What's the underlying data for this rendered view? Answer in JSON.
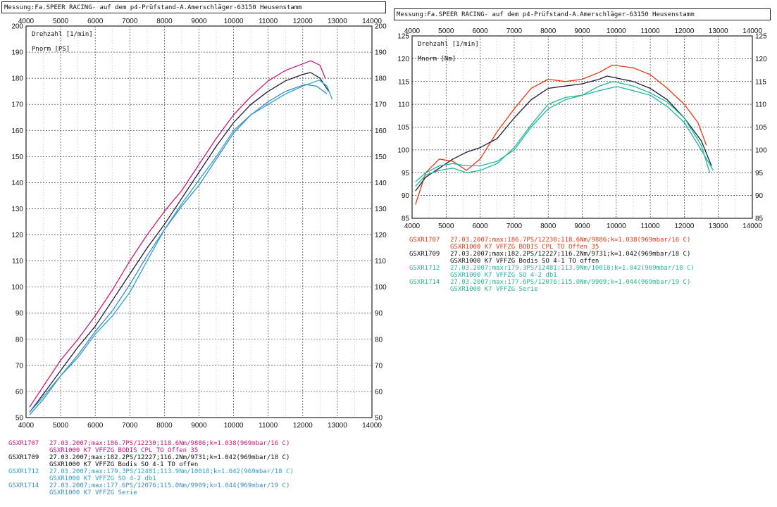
{
  "header": {
    "title": "Messung:Fa.SPEER RACING- auf dem p4-Prüfstand-A.Amerschläger-63150 Heusenstamm"
  },
  "colors": {
    "GSXR1707_left": "#c8197a",
    "GSXR1707_right": "#e33a10",
    "GSXR1709": "#1c1c3a",
    "GSXR1712": "#2ba0cf",
    "GSXR1712_right": "#1fb4a6",
    "GSXR1714": "#3a8fc2",
    "GSXR1714_right": "#26b890",
    "grid": "#3a3a3a"
  },
  "legend": [
    {
      "run": "GSXR1707",
      "line1": "27.03.2007;max:186.7PS/12230;118.6Nm/9886;k=1.038(969mbar/16 C)",
      "line2": "GSXR1000 K7 VFFZG BODIS CPL TO Offen 35"
    },
    {
      "run": "GSXR1709",
      "line1": "27.03.2007;max:182.2PS/12227;116.2Nm/9731;k=1.042(969mbar/18 C)",
      "line2": "GSXR1000 K7 VFFZG Bodis SO 4-1 TO offen"
    },
    {
      "run": "GSXR1712",
      "line1": "27.03.2007;max:179.3PS/12481;113.9Nm/10018;k=1.042(969mbar/18 C)",
      "line2": "GSXR1000 K7 VFFZG SO 4-2 db1"
    },
    {
      "run": "GSXR1714",
      "line1": "27.03.2007;max:177.6PS/12076;115.0Nm/9909;k=1.044(969mbar/19 C)",
      "line2": "GSXR1000 K7 VFFZG Serie"
    }
  ],
  "chart_data": [
    {
      "type": "line",
      "xlabel": "Drehzahl [1/min]",
      "ylabel": "Pnorm [PS]",
      "xlim": [
        4000,
        14000
      ],
      "ylim": [
        50,
        200
      ],
      "xticks": [
        4000,
        5000,
        6000,
        7000,
        8000,
        9000,
        10000,
        11000,
        12000,
        13000,
        14000
      ],
      "yticks": [
        50,
        60,
        70,
        80,
        90,
        100,
        110,
        120,
        130,
        140,
        150,
        160,
        170,
        180,
        190,
        200
      ],
      "grid": true,
      "series": [
        {
          "name": "GSXR1707",
          "x": [
            4100,
            4500,
            5000,
            5500,
            6000,
            6500,
            7000,
            7500,
            8000,
            8500,
            9000,
            9500,
            10000,
            10500,
            11000,
            11500,
            12000,
            12230,
            12500,
            12650
          ],
          "y": [
            54,
            62,
            72,
            80,
            89,
            99,
            110,
            120,
            129,
            137,
            147,
            157,
            166,
            173,
            179,
            183,
            185.5,
            186.7,
            185,
            180
          ]
        },
        {
          "name": "GSXR1709",
          "x": [
            4100,
            4500,
            5000,
            5500,
            6000,
            6500,
            7000,
            7500,
            8000,
            8500,
            9000,
            9500,
            10000,
            10500,
            11000,
            11500,
            12000,
            12227,
            12500,
            12750
          ],
          "y": [
            52,
            59,
            68,
            77,
            85,
            95,
            105,
            115,
            124,
            134,
            144,
            154,
            163,
            170,
            175,
            179,
            181.5,
            182.2,
            180,
            175
          ]
        },
        {
          "name": "GSXR1712",
          "x": [
            4100,
            4500,
            5000,
            5500,
            6000,
            6500,
            7000,
            7500,
            8000,
            8500,
            9000,
            9500,
            10000,
            10500,
            11000,
            11500,
            12000,
            12481,
            12700,
            12850
          ],
          "y": [
            52,
            58,
            66,
            73,
            82,
            89,
            98,
            110,
            122,
            132,
            141,
            150,
            160,
            166,
            170,
            174,
            177,
            179.3,
            177,
            172
          ]
        },
        {
          "name": "GSXR1714",
          "x": [
            4100,
            4500,
            5000,
            5500,
            6000,
            6500,
            7000,
            7500,
            8000,
            8500,
            9000,
            9500,
            10000,
            10500,
            11000,
            11500,
            12000,
            12076,
            12400,
            12700
          ],
          "y": [
            51,
            57,
            66,
            74,
            83,
            91,
            101,
            112,
            122,
            131,
            139,
            149,
            159,
            166,
            171,
            175,
            177.3,
            177.6,
            177,
            174
          ]
        }
      ]
    },
    {
      "type": "line",
      "xlabel": "Drehzahl [1/min]",
      "ylabel": "Mnorm [Nm]",
      "xlim": [
        4000,
        14000
      ],
      "ylim": [
        85,
        125
      ],
      "xticks": [
        4000,
        5000,
        6000,
        7000,
        8000,
        9000,
        10000,
        11000,
        12000,
        13000,
        14000
      ],
      "yticks": [
        85,
        90,
        95,
        100,
        105,
        110,
        115,
        120,
        125
      ],
      "grid": true,
      "series": [
        {
          "name": "GSXR1707",
          "x": [
            4100,
            4400,
            4800,
            5200,
            5600,
            6000,
            6500,
            7000,
            7500,
            8000,
            8500,
            9000,
            9500,
            9886,
            10500,
            11000,
            11500,
            12000,
            12400,
            12650
          ],
          "y": [
            88,
            95,
            98,
            97.5,
            95.5,
            98,
            104,
            109,
            113.5,
            115.5,
            115,
            115.5,
            117,
            118.6,
            118,
            116.5,
            113.5,
            110,
            106,
            101
          ]
        },
        {
          "name": "GSXR1709",
          "x": [
            4100,
            4400,
            4800,
            5200,
            5600,
            6000,
            6500,
            7000,
            7500,
            8000,
            8500,
            9000,
            9500,
            9731,
            10500,
            11000,
            11500,
            12000,
            12500,
            12800
          ],
          "y": [
            91,
            94,
            96,
            98,
            99.5,
            100.5,
            102.5,
            107,
            111,
            113.5,
            114,
            114.5,
            115.5,
            116.2,
            115,
            113.5,
            111,
            107,
            102,
            96.5
          ]
        },
        {
          "name": "GSXR1712",
          "x": [
            4100,
            4400,
            4800,
            5200,
            5600,
            6000,
            6500,
            7000,
            7500,
            8000,
            8500,
            9000,
            9500,
            10018,
            10500,
            11000,
            11500,
            12000,
            12500,
            12850
          ],
          "y": [
            93,
            95,
            96.5,
            97,
            96.5,
            96.5,
            97.5,
            100,
            105,
            109,
            111,
            112,
            113,
            113.9,
            113,
            112,
            109.5,
            106,
            100,
            95.5
          ]
        },
        {
          "name": "GSXR1714",
          "x": [
            4100,
            4400,
            4800,
            5200,
            5600,
            6000,
            6500,
            7000,
            7500,
            8000,
            8500,
            9000,
            9500,
            9909,
            10500,
            11000,
            11500,
            12000,
            12500,
            12750
          ],
          "y": [
            92,
            94.5,
            95.5,
            96,
            95,
            95.5,
            97,
            100.5,
            105.5,
            110,
            111.5,
            112,
            114,
            115,
            114,
            112.5,
            110.5,
            107,
            101,
            95
          ]
        }
      ]
    }
  ]
}
